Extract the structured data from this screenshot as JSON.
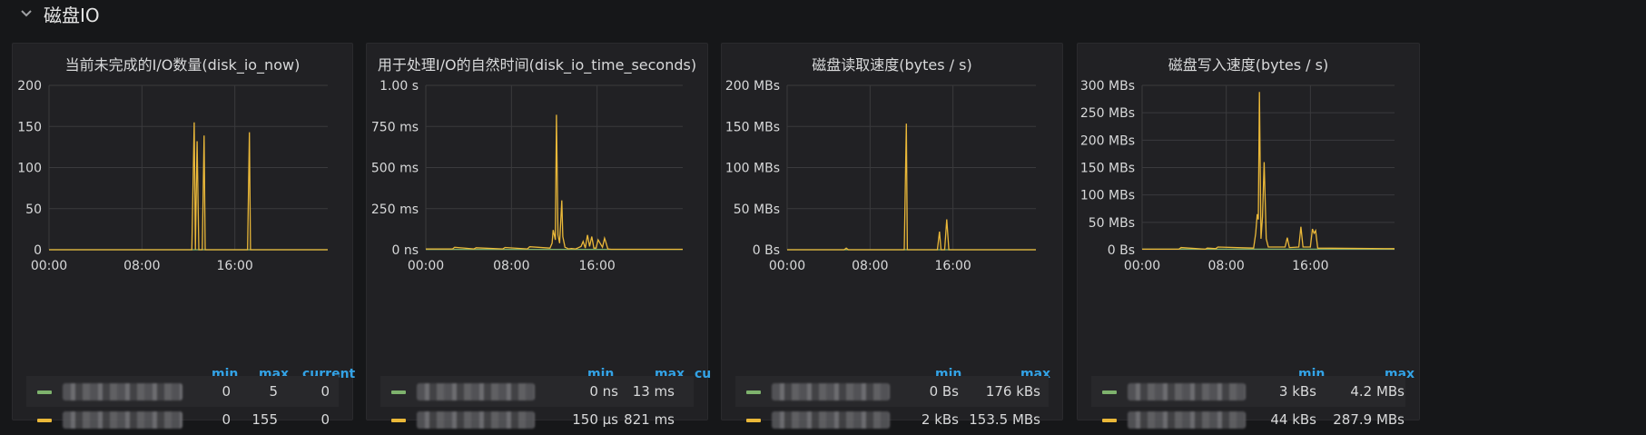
{
  "row": {
    "title": "磁盘IO",
    "collapse_icon": "chevron-down-icon"
  },
  "colors": {
    "accent": "#33a2e5",
    "series_green": "#7eb26d",
    "series_yellow": "#eab839",
    "grid": "#3a3a3d"
  },
  "panels": [
    {
      "title": "当前未完成的I/O数量(disk_io_now)",
      "legend_columns": [
        "min",
        "max",
        "current"
      ],
      "legend_rows": [
        {
          "color": "#7eb26d",
          "min": "0",
          "max": "5",
          "current": "0"
        },
        {
          "color": "#eab839",
          "min": "0",
          "max": "155",
          "current": "0"
        }
      ]
    },
    {
      "title": "用于处理I/O的自然时间(disk_io_time_seconds)",
      "legend_columns": [
        "min",
        "max",
        "cu"
      ],
      "legend_rows": [
        {
          "color": "#7eb26d",
          "min": "0 ns",
          "max": "13 ms"
        },
        {
          "color": "#eab839",
          "min": "150 μs",
          "max": "821 ms"
        }
      ]
    },
    {
      "title": "磁盘读取速度(bytes / s)",
      "legend_columns": [
        "min",
        "max"
      ],
      "legend_rows": [
        {
          "color": "#7eb26d",
          "min": "0 Bs",
          "max": "176 kBs"
        },
        {
          "color": "#eab839",
          "min": "2 kBs",
          "max": "153.5 MBs"
        }
      ]
    },
    {
      "title": "磁盘写入速度(bytes / s)",
      "legend_columns": [
        "min",
        "max"
      ],
      "legend_rows": [
        {
          "color": "#7eb26d",
          "min": "3 kBs",
          "max": "4.2 MBs"
        },
        {
          "color": "#eab839",
          "min": "44 kBs",
          "max": "287.9 MBs"
        }
      ]
    }
  ],
  "chart_data": [
    {
      "type": "line",
      "title": "当前未完成的I/O数量(disk_io_now)",
      "x_ticks": [
        "00:00",
        "08:00",
        "16:00"
      ],
      "xlim": [
        0,
        24
      ],
      "y_ticks": [
        "0",
        "50",
        "100",
        "150",
        "200"
      ],
      "ylim": [
        0,
        200
      ],
      "series": [
        {
          "color": "#eab839",
          "x": [
            0,
            12.3,
            12.5,
            12.6,
            12.75,
            12.9,
            13.2,
            13.35,
            13.45,
            13.6,
            17.1,
            17.25,
            17.35,
            17.5,
            24
          ],
          "y": [
            0,
            0,
            155,
            0,
            132,
            0,
            0,
            139,
            0,
            0,
            0,
            143,
            0,
            0,
            0
          ]
        },
        {
          "color": "#7eb26d",
          "x": [
            0,
            24
          ],
          "y": [
            0,
            0
          ]
        }
      ]
    },
    {
      "type": "line",
      "title": "用于处理I/O的自然时间(disk_io_time_seconds)",
      "x_ticks": [
        "00:00",
        "08:00",
        "16:00"
      ],
      "xlim": [
        0,
        24
      ],
      "y_ticks": [
        "0 ns",
        "250 ms",
        "500 ms",
        "750 ms",
        "1.00 s"
      ],
      "ylim": [
        0,
        1000
      ],
      "series": [
        {
          "color": "#eab839",
          "x": [
            0,
            2.5,
            2.7,
            4.5,
            4.7,
            7.2,
            7.4,
            9.5,
            9.7,
            11.6,
            11.8,
            11.9,
            12.1,
            12.2,
            12.35,
            12.5,
            12.7,
            12.8,
            13.0,
            13.2,
            13.3,
            13.6,
            14.0,
            14.5,
            14.7,
            14.9,
            15.1,
            15.3,
            15.5,
            15.7,
            15.9,
            16.1,
            16.5,
            16.7,
            16.8,
            17.0,
            17.3,
            24
          ],
          "y": [
            5,
            5,
            15,
            5,
            12,
            5,
            14,
            5,
            18,
            10,
            40,
            120,
            60,
            821,
            90,
            40,
            300,
            80,
            15,
            10,
            5,
            8,
            5,
            20,
            50,
            10,
            90,
            20,
            80,
            10,
            10,
            60,
            15,
            70,
            50,
            5,
            3,
            3
          ]
        },
        {
          "color": "#7eb26d",
          "x": [
            0,
            24
          ],
          "y": [
            2,
            2
          ]
        }
      ]
    },
    {
      "type": "line",
      "title": "磁盘读取速度(bytes / s)",
      "x_ticks": [
        "00:00",
        "08:00",
        "16:00"
      ],
      "xlim": [
        0,
        24
      ],
      "y_ticks": [
        "0 Bs",
        "50 MBs",
        "100 MBs",
        "150 MBs",
        "200 MBs"
      ],
      "ylim": [
        0,
        200
      ],
      "series": [
        {
          "color": "#eab839",
          "x": [
            0,
            5.5,
            5.7,
            5.9,
            11.3,
            11.5,
            11.6,
            14.5,
            14.7,
            14.85,
            15.2,
            15.4,
            15.6,
            24
          ],
          "y": [
            0,
            0,
            2,
            0,
            0,
            153.5,
            0,
            0,
            22,
            0,
            0,
            37,
            0,
            0
          ]
        },
        {
          "color": "#7eb26d",
          "x": [
            0,
            24
          ],
          "y": [
            0,
            0
          ]
        }
      ]
    },
    {
      "type": "line",
      "title": "磁盘写入速度(bytes / s)",
      "x_ticks": [
        "00:00",
        "08:00",
        "16:00"
      ],
      "xlim": [
        0,
        24
      ],
      "y_ticks": [
        "0 Bs",
        "50 MBs",
        "100 MBs",
        "150 MBs",
        "200 MBs",
        "250 MBs",
        "300 MBs"
      ],
      "ylim": [
        0,
        300
      ],
      "series": [
        {
          "color": "#eab839",
          "x": [
            0,
            3.5,
            3.7,
            6.0,
            6.2,
            7.0,
            7.2,
            10.6,
            10.8,
            10.95,
            11.05,
            11.15,
            11.3,
            11.45,
            11.6,
            11.8,
            12.0,
            13.6,
            13.8,
            14.0,
            14.9,
            15.1,
            15.3,
            16.0,
            16.2,
            16.35,
            16.5,
            16.7,
            24
          ],
          "y": [
            1,
            1,
            4,
            1,
            3,
            2,
            5,
            3,
            30,
            65,
            55,
            288,
            20,
            60,
            160,
            20,
            5,
            5,
            22,
            4,
            5,
            42,
            5,
            5,
            38,
            30,
            35,
            3,
            2
          ]
        },
        {
          "color": "#7eb26d",
          "x": [
            0,
            24
          ],
          "y": [
            1,
            1
          ]
        }
      ]
    }
  ]
}
